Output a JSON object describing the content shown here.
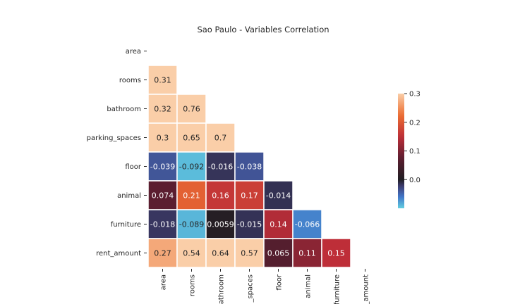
{
  "chart_data": {
    "type": "heatmap",
    "title": "Sao Paulo - Variables Correlation",
    "row_labels": [
      "area",
      "rooms",
      "bathroom",
      "parking_spaces",
      "floor",
      "animal",
      "furniture",
      "rent_amount"
    ],
    "col_labels": [
      "area",
      "rooms",
      "bathroom",
      "parking_spaces",
      "floor",
      "animal",
      "furniture",
      "rent_amount"
    ],
    "col_labels_visible": [
      "area",
      "rooms",
      "athroom",
      "_spaces",
      "floor",
      "animal",
      "furniture",
      "_amount"
    ],
    "mask": "upper triangle including diagonal",
    "cells": [
      {
        "row": 1,
        "col": 0,
        "value": 0.31,
        "label": "0.31"
      },
      {
        "row": 2,
        "col": 0,
        "value": 0.32,
        "label": "0.32"
      },
      {
        "row": 2,
        "col": 1,
        "value": 0.76,
        "label": "0.76"
      },
      {
        "row": 3,
        "col": 0,
        "value": 0.3,
        "label": "0.3"
      },
      {
        "row": 3,
        "col": 1,
        "value": 0.65,
        "label": "0.65"
      },
      {
        "row": 3,
        "col": 2,
        "value": 0.7,
        "label": "0.7"
      },
      {
        "row": 4,
        "col": 0,
        "value": -0.039,
        "label": "-0.039"
      },
      {
        "row": 4,
        "col": 1,
        "value": -0.092,
        "label": "-0.092"
      },
      {
        "row": 4,
        "col": 2,
        "value": -0.016,
        "label": "-0.016"
      },
      {
        "row": 4,
        "col": 3,
        "value": -0.038,
        "label": "-0.038"
      },
      {
        "row": 5,
        "col": 0,
        "value": 0.074,
        "label": "0.074"
      },
      {
        "row": 5,
        "col": 1,
        "value": 0.21,
        "label": "0.21"
      },
      {
        "row": 5,
        "col": 2,
        "value": 0.16,
        "label": "0.16"
      },
      {
        "row": 5,
        "col": 3,
        "value": 0.17,
        "label": "0.17"
      },
      {
        "row": 5,
        "col": 4,
        "value": -0.014,
        "label": "-0.014"
      },
      {
        "row": 6,
        "col": 0,
        "value": -0.018,
        "label": "-0.018"
      },
      {
        "row": 6,
        "col": 1,
        "value": -0.089,
        "label": "-0.089"
      },
      {
        "row": 6,
        "col": 2,
        "value": 0.0059,
        "label": "0.0059"
      },
      {
        "row": 6,
        "col": 3,
        "value": -0.015,
        "label": "-0.015"
      },
      {
        "row": 6,
        "col": 4,
        "value": 0.14,
        "label": "0.14"
      },
      {
        "row": 6,
        "col": 5,
        "value": -0.066,
        "label": "-0.066"
      },
      {
        "row": 7,
        "col": 0,
        "value": 0.27,
        "label": "0.27"
      },
      {
        "row": 7,
        "col": 1,
        "value": 0.54,
        "label": "0.54"
      },
      {
        "row": 7,
        "col": 2,
        "value": 0.64,
        "label": "0.64"
      },
      {
        "row": 7,
        "col": 3,
        "value": 0.57,
        "label": "0.57"
      },
      {
        "row": 7,
        "col": 4,
        "value": 0.065,
        "label": "0.065"
      },
      {
        "row": 7,
        "col": 5,
        "value": 0.11,
        "label": "0.11"
      },
      {
        "row": 7,
        "col": 6,
        "value": 0.15,
        "label": "0.15"
      }
    ],
    "colorbar": {
      "vmin": -0.1,
      "vmax": 0.3,
      "center": 0,
      "ticks": [
        0.3,
        0.2,
        0.1,
        0.0
      ],
      "tick_labels": [
        "0.3",
        "0.2",
        "0.1",
        "0.0"
      ],
      "colormap": "icefire (dark-centered diverging)"
    },
    "grid": false,
    "cell_border_color": "#ffffff"
  }
}
